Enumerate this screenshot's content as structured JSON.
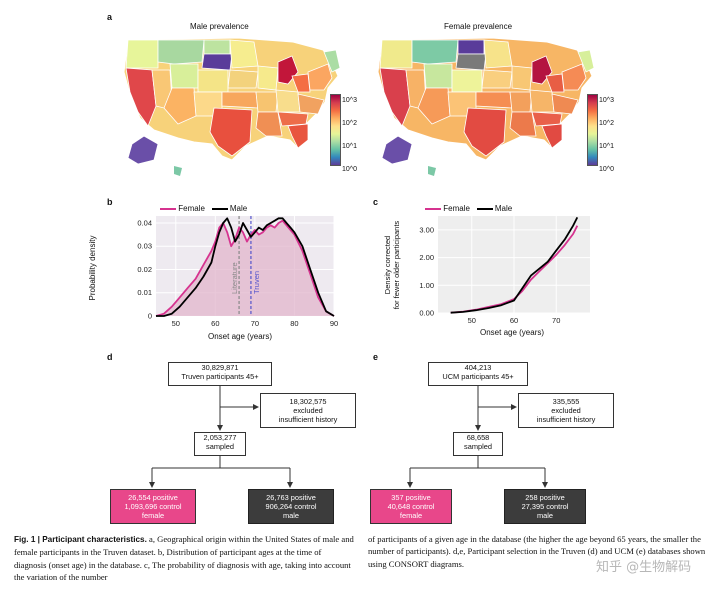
{
  "panel_a": {
    "label": "a",
    "map_left_title": "Male prevalence",
    "map_right_title": "Female prevalence",
    "colorbar_ticks": [
      "10^3",
      "10^2",
      "10^1",
      "10^0"
    ],
    "colorbar_colors": [
      "#5e3c99",
      "#3288bd",
      "#66c2a5",
      "#abdda4",
      "#e6f598",
      "#fee08b",
      "#fdae61",
      "#f46d43",
      "#d53e4f",
      "#9e0142"
    ]
  },
  "panel_b": {
    "label": "b",
    "legend_female": "Female",
    "legend_male": "Male",
    "ylabel": "Probability density",
    "xlabel": "Onset age (years)",
    "literature_label": "Literature",
    "truven_label": "Truven",
    "colors": {
      "female": "#d6338f",
      "male": "#000000",
      "literature": "#888888",
      "truven": "#5555cc"
    }
  },
  "panel_c": {
    "label": "c",
    "legend_female": "Female",
    "legend_male": "Male",
    "ylabel_line1": "Density corrected",
    "ylabel_line2": "for fewer older participants",
    "xlabel": "Onset age (years)"
  },
  "chart_data": [
    {
      "type": "line",
      "title": "",
      "xlabel": "Onset age (years)",
      "ylabel": "Probability density",
      "xlim": [
        45,
        90
      ],
      "ylim": [
        0,
        0.043
      ],
      "xticks": [
        50,
        60,
        70,
        80,
        90
      ],
      "yticks": [
        0,
        0.01,
        0.02,
        0.03,
        0.04
      ],
      "series": [
        {
          "name": "Female",
          "x": [
            45,
            47,
            49,
            51,
            53,
            55,
            57,
            59,
            60,
            61,
            62,
            63,
            64,
            65,
            66,
            67,
            68,
            69,
            70,
            71,
            72,
            73,
            74,
            75,
            76,
            77,
            78,
            79,
            80,
            82,
            84,
            86,
            88,
            90
          ],
          "values": [
            0,
            0.001,
            0.004,
            0.008,
            0.012,
            0.016,
            0.022,
            0.028,
            0.032,
            0.038,
            0.04,
            0.036,
            0.03,
            0.033,
            0.038,
            0.036,
            0.032,
            0.035,
            0.037,
            0.035,
            0.036,
            0.038,
            0.039,
            0.038,
            0.04,
            0.041,
            0.039,
            0.037,
            0.035,
            0.028,
            0.018,
            0.008,
            0.002,
            0
          ]
        },
        {
          "name": "Male",
          "x": [
            45,
            47,
            49,
            51,
            53,
            55,
            57,
            59,
            60,
            61,
            62,
            63,
            64,
            65,
            66,
            67,
            68,
            69,
            70,
            71,
            72,
            73,
            74,
            75,
            76,
            77,
            78,
            79,
            80,
            82,
            84,
            86,
            88,
            90
          ],
          "values": [
            0,
            0,
            0.001,
            0.004,
            0.008,
            0.012,
            0.017,
            0.023,
            0.03,
            0.036,
            0.04,
            0.042,
            0.038,
            0.032,
            0.035,
            0.04,
            0.037,
            0.034,
            0.036,
            0.038,
            0.037,
            0.039,
            0.04,
            0.041,
            0.042,
            0.042,
            0.04,
            0.038,
            0.036,
            0.03,
            0.02,
            0.01,
            0.002,
            0
          ]
        }
      ],
      "annotations": [
        {
          "text": "Literature",
          "x": 66
        },
        {
          "text": "Truven",
          "x": 69
        }
      ]
    },
    {
      "type": "line",
      "title": "",
      "xlabel": "Onset age (years)",
      "ylabel": "Density corrected for fewer older participants",
      "xlim": [
        42,
        78
      ],
      "ylim": [
        0,
        3.5
      ],
      "xticks": [
        50,
        60,
        70
      ],
      "yticks": [
        0,
        1.0,
        2.0,
        3.0
      ],
      "series": [
        {
          "name": "Female",
          "x": [
            45,
            48,
            51,
            54,
            57,
            60,
            62,
            64,
            66,
            68,
            70,
            72,
            74,
            75
          ],
          "values": [
            0.01,
            0.05,
            0.12,
            0.22,
            0.32,
            0.5,
            0.8,
            1.2,
            1.5,
            1.8,
            2.1,
            2.45,
            2.85,
            3.15
          ]
        },
        {
          "name": "Male",
          "x": [
            45,
            48,
            51,
            54,
            57,
            60,
            62,
            64,
            66,
            68,
            70,
            72,
            74,
            75
          ],
          "values": [
            0.01,
            0.04,
            0.1,
            0.18,
            0.28,
            0.45,
            0.9,
            1.35,
            1.6,
            1.85,
            2.25,
            2.65,
            3.15,
            3.45
          ]
        }
      ]
    }
  ],
  "panel_d": {
    "label": "d",
    "top_count": "30,829,871",
    "top_text": "Truven participants 45+",
    "excluded_count": "18,302,575",
    "excluded_line2": "excluded",
    "excluded_line3": "insufficient history",
    "sampled_count": "2,053,277",
    "sampled_text": "sampled",
    "female_line1": "26,554 positive",
    "female_line2": "1,093,696 control",
    "female_line3": "female",
    "male_line1": "26,763 positive",
    "male_line2": "906,264 control",
    "male_line3": "male"
  },
  "panel_e": {
    "label": "e",
    "top_count": "404,213",
    "top_text": "UCM participants 45+",
    "excluded_count": "335,555",
    "excluded_line2": "excluded",
    "excluded_line3": "insufficient history",
    "sampled_count": "68,658",
    "sampled_text": "sampled",
    "female_line1": "357 positive",
    "female_line2": "40,648 control",
    "female_line3": "female",
    "male_line1": "258 positive",
    "male_line2": "27,395 control",
    "male_line3": "male"
  },
  "caption": {
    "fig_label": "Fig. 1 | Participant characteristics.",
    "left_rest": " a, Geographical origin within the United States of male and female participants in the Truven dataset. b, Distribution of participant ages at the time of diagnosis (onset age) in the database. c, The probability of diagnosis with age, taking into account the variation of the number",
    "right_text": "of participants of a given age in the database (the higher the age beyond 65 years, the smaller the number of participants). d,e, Participant selection in the Truven (d) and UCM (e) databases shown using CONSORT diagrams."
  },
  "watermark": "知乎 @生物解码"
}
